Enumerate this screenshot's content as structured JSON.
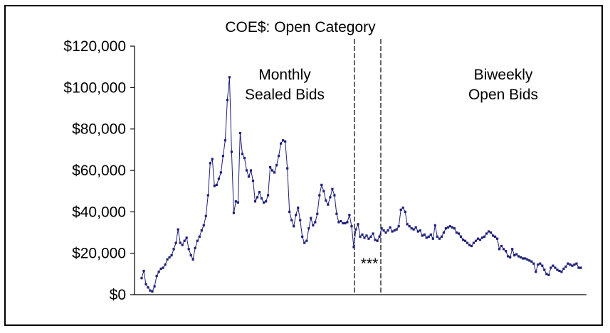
{
  "chart_data": {
    "type": "line",
    "title": "COE$: Open Category",
    "xlabel": "",
    "ylabel": "",
    "ylim": [
      0,
      120000
    ],
    "y_ticks": [
      0,
      20000,
      40000,
      60000,
      80000,
      100000,
      120000
    ],
    "y_tick_labels": [
      "$0",
      "$20,000",
      "$40,000",
      "$60,000",
      "$80,000",
      "$100,000",
      "$120,000"
    ],
    "grid": false,
    "legend": "none",
    "series_color": "#1f1f7a",
    "annotations": [
      {
        "lines": [
          "Monthly",
          "Sealed Bids"
        ]
      },
      {
        "lines": [
          "Biweekly",
          "Open Bids"
        ]
      },
      {
        "lines": [
          "***"
        ]
      }
    ],
    "series": [
      {
        "values": [
          8000,
          11500,
          5000,
          3500,
          2000,
          1500,
          4000,
          9000,
          11000,
          12500,
          13000,
          14500,
          17000,
          18000,
          19000,
          22000,
          25000,
          31500,
          25000,
          24000,
          26000,
          27500,
          22000,
          19000,
          17000,
          22500,
          26000,
          28000,
          31000,
          33500,
          38000,
          48000,
          63500,
          65500,
          52500,
          53000,
          56000,
          59000,
          67000,
          74500,
          94000,
          105000,
          69000,
          39500,
          45000,
          44500,
          78000,
          68000,
          66000,
          60000,
          57000,
          60000,
          55000,
          45000,
          47000,
          49500,
          46500,
          44500,
          45000,
          48000,
          61500,
          60000,
          59000,
          62500,
          67000,
          73000,
          74500,
          74000,
          61000,
          40000,
          36000,
          33000,
          38500,
          42000,
          36000,
          28000,
          25000,
          26000,
          32000,
          37000,
          33500,
          35000,
          39000,
          48000,
          53000,
          50000,
          45500,
          43500,
          47000,
          51000,
          48000,
          39000,
          35000,
          35500,
          34500,
          34500,
          35000,
          38500,
          33000,
          23000,
          31500,
          34000,
          28000,
          29000,
          27500,
          28500,
          27000,
          28000,
          29500,
          26500,
          26000,
          28000,
          32000,
          31000,
          30000,
          31000,
          32500,
          30500,
          31000,
          31500,
          33000,
          41000,
          42000,
          40000,
          34000,
          33000,
          32000,
          31500,
          32500,
          30500,
          31000,
          28500,
          29000,
          27500,
          28000,
          29000,
          27000,
          33500,
          28000,
          27000,
          28000,
          30000,
          32000,
          32500,
          33000,
          32500,
          32000,
          30000,
          29500,
          28000,
          26500,
          26000,
          25000,
          24000,
          23500,
          25000,
          26000,
          27000,
          26500,
          27500,
          28000,
          29500,
          30500,
          30000,
          28500,
          28000,
          27000,
          22000,
          23500,
          22000,
          21000,
          18500,
          18000,
          22000,
          19000,
          19500,
          18500,
          18000,
          17500,
          17500,
          17000,
          16500,
          16000,
          15000,
          11000,
          14500,
          15000,
          14000,
          12000,
          10000,
          9500,
          13000,
          14000,
          13000,
          12000,
          11500,
          11000,
          12500,
          13500,
          15000,
          14500,
          14000,
          14500,
          15000,
          13000,
          13000
        ]
      }
    ]
  }
}
